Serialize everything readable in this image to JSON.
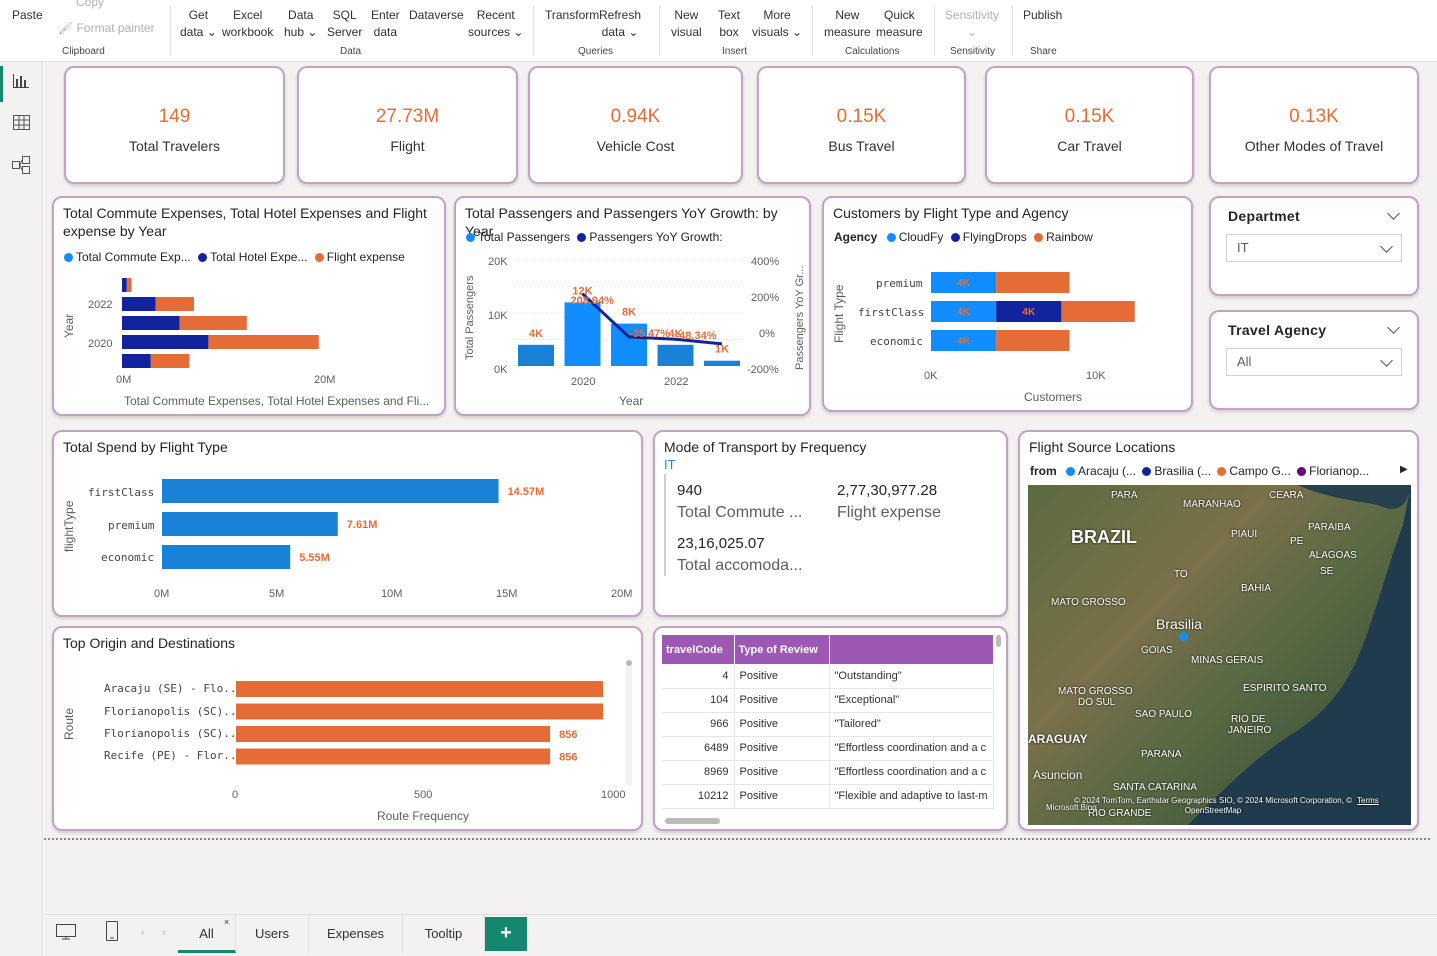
{
  "ribbon": {
    "paste": "Paste",
    "copy": "Copy",
    "format_painter": "Format painter",
    "get_data": [
      "Get",
      "data"
    ],
    "excel": [
      "Excel",
      "workbook"
    ],
    "data_hub": [
      "Data",
      "hub"
    ],
    "sql": [
      "SQL",
      "Server"
    ],
    "enter_data": [
      "Enter",
      "data"
    ],
    "dataverse": "Dataverse",
    "recent": [
      "Recent",
      "sources"
    ],
    "transform": "Transform",
    "refresh": [
      "Refresh",
      "data"
    ],
    "new_visual": [
      "New",
      "visual"
    ],
    "text_box": [
      "Text",
      "box"
    ],
    "more_visuals": [
      "More",
      "visuals"
    ],
    "new_measure": [
      "New",
      "measure"
    ],
    "quick_measure": [
      "Quick",
      "measure"
    ],
    "sensitivity": "Sensitivity",
    "publish": "Publish",
    "groups": {
      "clipboard": "Clipboard",
      "data": "Data",
      "queries": "Queries",
      "insert": "Insert",
      "calculations": "Calculations",
      "sensitivity": "Sensitivity",
      "share": "Share"
    }
  },
  "kpis": [
    {
      "value": "149",
      "label": "Total Travelers"
    },
    {
      "value": "27.73M",
      "label": "Flight"
    },
    {
      "value": "0.94K",
      "label": "Vehicle Cost"
    },
    {
      "value": "0.15K",
      "label": "Bus Travel"
    },
    {
      "value": "0.15K",
      "label": "Car Travel"
    },
    {
      "value": "0.13K",
      "label": "Other Modes of Travel"
    }
  ],
  "slicers": {
    "department": {
      "label": "Departmet",
      "value": "IT"
    },
    "agency": {
      "label": "Travel Agency",
      "value": "All"
    }
  },
  "colors": {
    "accent": "#e66c37",
    "blue": "#118dff",
    "navy": "#12239e",
    "purple": "#9e57b4",
    "card_border": "#c5a0c8",
    "tab_add": "#13876f"
  },
  "expenses_chart": {
    "title": "Total Commute Expenses, Total Hotel Expenses and Flight expense by Year",
    "legend": [
      "Total Commute Exp...",
      "Total Hotel Expe...",
      "Flight expense"
    ],
    "y_axis_label": "Year",
    "x_axis_label": "Total Commute Expenses, Total Hotel Expenses and Fli...",
    "x_ticks": [
      "0M",
      "20M"
    ],
    "y_ticks": [
      "2022",
      "2020"
    ]
  },
  "passengers_chart": {
    "title": "Total Passengers and Passengers YoY Growth: by Year",
    "legend": [
      "Total Passengers",
      "Passengers YoY Growth:"
    ],
    "y_left": "Total Passengers",
    "y_right": "Passengers YoY Gr...",
    "x_label": "Year",
    "left_ticks": [
      "20K",
      "10K",
      "0K"
    ],
    "right_ticks": [
      "400%",
      "200%",
      "0%",
      "-200%"
    ],
    "x_ticks": [
      "2020",
      "2022"
    ],
    "bar_labels": [
      "4K",
      "12K",
      "8K",
      "4K",
      "1K"
    ],
    "line_labels": [
      "208.94%",
      "-35.47%",
      "-48.34%"
    ]
  },
  "customers_chart": {
    "title": "Customers by Flight Type and Agency",
    "legend_title": "Agency",
    "legend": [
      "CloudFy",
      "FlyingDrops",
      "Rainbow"
    ],
    "y_label": "Flight Type",
    "x_label": "Customers",
    "x_ticks": [
      "0K",
      "10K"
    ],
    "categories": [
      "premium",
      "firstClass",
      "economic"
    ],
    "seg_label": "4K"
  },
  "spend_chart": {
    "title": "Total Spend by Flight Type",
    "y_label": "flightType",
    "categories": [
      "firstClass",
      "premium",
      "economic"
    ],
    "labels": [
      "14.57M",
      "7.61M",
      "5.55M"
    ],
    "x_ticks": [
      "0M",
      "5M",
      "10M",
      "15M",
      "20M"
    ]
  },
  "mode_card": {
    "title": "Mode of Transport by Frequency",
    "filter": "IT",
    "v1": "940",
    "l1": "Total Commute ...",
    "v2": "2,77,30,977.28",
    "l2": "Flight expense",
    "v3": "23,16,025.07",
    "l3": "Total accomoda..."
  },
  "map_card": {
    "title": "Flight Source Locations",
    "legend_title": "from",
    "legend": [
      "Aracaju (...",
      "Brasilia (...",
      "Campo G...",
      "Florianop..."
    ],
    "labels": [
      "PARA",
      "MARANHAO",
      "CEARA",
      "BRAZIL",
      "PIAUI",
      "PARAIBA",
      "PE",
      "ALAGOAS",
      "SE",
      "TO",
      "BAHIA",
      "MATO GROSSO",
      "Brasilia",
      "GOIAS",
      "MINAS GERAIS",
      "ESPIRITO SANTO",
      "MATO GROSSO",
      "DO SUL",
      "SAO PAULO",
      "RIO DE",
      "JANEIRO",
      "PARANA",
      "ARAGUAY",
      "Asuncion",
      "SANTA CATARINA",
      "RIO GRANDE"
    ],
    "credit": "© 2024 TomTom, Earthstar Geographics SIO, © 2024 Microsoft Corporation, © OpenStreetMap",
    "terms": "Terms",
    "ms": "Microsoft Bing"
  },
  "routes_chart": {
    "title": "Top Origin and Destinations",
    "y_label": "Route",
    "x_label": "Route Frequency",
    "routes": [
      "Aracaju (SE) - Flo...",
      "Florianopolis (SC)...",
      "Florianopolis (SC)...",
      "Recife (PE) - Flor..."
    ],
    "labels": [
      "856",
      "856"
    ],
    "x_ticks": [
      "0",
      "500",
      "1000"
    ]
  },
  "review_table": {
    "headers": [
      "travelCode",
      "Type of Review",
      ""
    ],
    "rows": [
      [
        "4",
        "Positive",
        "\"Outstanding\""
      ],
      [
        "104",
        "Positive",
        "\"Exceptional\""
      ],
      [
        "966",
        "Positive",
        "\"Tailored\""
      ],
      [
        "6489",
        "Positive",
        "\"Effortless coordination and a c"
      ],
      [
        "8969",
        "Positive",
        "\"Effortless coordination and a c"
      ],
      [
        "10212",
        "Positive",
        "\"Flexible and adaptive to last-m"
      ]
    ]
  },
  "tabs": {
    "items": [
      "All",
      "Users",
      "Expenses",
      "Tooltip"
    ],
    "add": "+"
  },
  "chart_data": [
    {
      "type": "bar",
      "title": "Total Commute Expenses, Total Hotel Expenses and Flight expense by Year",
      "categories": [
        "2023",
        "2022",
        "2021",
        "2020",
        "2019"
      ],
      "series": [
        {
          "name": "Total Commute Exp...",
          "values": [
            0.5,
            3.5,
            6,
            9,
            3
          ]
        },
        {
          "name": "Total Hotel Expe...",
          "values": [
            0.5,
            4,
            7,
            11.5,
            4
          ]
        },
        {
          "name": "Flight expense",
          "values": [
            0,
            0,
            0,
            0,
            0
          ]
        }
      ],
      "xlim": [
        0,
        25
      ]
    },
    {
      "type": "bar",
      "title": "Total Passengers and Passengers YoY Growth: by Year",
      "categories": [
        "2019",
        "2020",
        "2021",
        "2022",
        "2023"
      ],
      "series": [
        {
          "name": "Total Passengers",
          "values": [
            4,
            12,
            8,
            4,
            1
          ]
        },
        {
          "name": "Passengers YoY Growth:",
          "values": [
            null,
            208.94,
            -35.47,
            -48.34,
            -75
          ]
        }
      ]
    },
    {
      "type": "bar",
      "title": "Customers by Flight Type and Agency",
      "categories": [
        "premium",
        "firstClass",
        "economic"
      ],
      "series": [
        {
          "name": "CloudFy",
          "values": [
            4,
            4,
            4
          ]
        },
        {
          "name": "FlyingDrops",
          "values": [
            0,
            4,
            0
          ]
        },
        {
          "name": "Rainbow",
          "values": [
            4.5,
            4.5,
            4.5
          ]
        }
      ],
      "xlim": [
        0,
        14
      ]
    },
    {
      "type": "bar",
      "title": "Total Spend by Flight Type",
      "categories": [
        "firstClass",
        "premium",
        "economic"
      ],
      "values": [
        14.57,
        7.61,
        5.55
      ],
      "xlim": [
        0,
        20
      ]
    },
    {
      "type": "bar",
      "title": "Top Origin and Destinations",
      "categories": [
        "Aracaju (SE) - Flo...",
        "Florianopolis (SC)...",
        "Florianopolis (SC)...",
        "Recife (PE) - Flor..."
      ],
      "values": [
        1000,
        1000,
        856,
        856
      ],
      "xlim": [
        0,
        1000
      ]
    }
  ]
}
